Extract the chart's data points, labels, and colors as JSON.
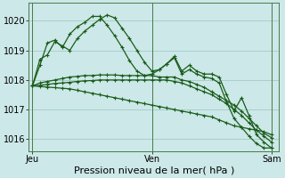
{
  "background_color": "#cce8e8",
  "grid_color": "#aacece",
  "line_color": "#1a5c1a",
  "xlabel": "Pression niveau de la mer( hPa )",
  "xlabel_fontsize": 8,
  "yticks": [
    1016,
    1017,
    1018,
    1019,
    1020
  ],
  "ytick_fontsize": 7,
  "xtick_labels": [
    "Jeu",
    "Ven",
    "Sam"
  ],
  "xtick_positions": [
    0,
    16,
    32
  ],
  "xtick_fontsize": 7,
  "ylim": [
    1015.6,
    1020.6
  ],
  "xlim": [
    -0.5,
    33
  ],
  "n_points": 33,
  "series": [
    [
      1017.8,
      1018.7,
      1018.85,
      1019.3,
      1019.15,
      1019.0,
      1019.4,
      1019.65,
      1019.85,
      1020.05,
      1020.2,
      1020.1,
      1019.75,
      1019.4,
      1019.0,
      1018.6,
      1018.3,
      1018.35,
      1018.55,
      1018.8,
      1018.3,
      1018.5,
      1018.3,
      1018.2,
      1018.2,
      1018.1,
      1017.5,
      1016.95,
      1017.4,
      1016.8,
      1016.15,
      1015.9,
      1015.7
    ],
    [
      1017.8,
      1018.5,
      1019.25,
      1019.35,
      1019.1,
      1019.55,
      1019.8,
      1019.95,
      1020.15,
      1020.15,
      1019.85,
      1019.5,
      1019.1,
      1018.65,
      1018.3,
      1018.15,
      1018.2,
      1018.35,
      1018.55,
      1018.75,
      1018.2,
      1018.35,
      1018.2,
      1018.1,
      1018.05,
      1017.9,
      1017.25,
      1016.7,
      1016.4,
      1016.1,
      1015.85,
      1015.7,
      1015.7
    ],
    [
      1017.8,
      1017.9,
      1017.95,
      1018.0,
      1018.05,
      1018.1,
      1018.12,
      1018.15,
      1018.15,
      1018.17,
      1018.17,
      1018.17,
      1018.15,
      1018.15,
      1018.15,
      1018.15,
      1018.15,
      1018.1,
      1018.1,
      1018.1,
      1018.0,
      1017.95,
      1017.85,
      1017.75,
      1017.6,
      1017.45,
      1017.3,
      1017.15,
      1016.95,
      1016.7,
      1016.45,
      1016.2,
      1016.05
    ],
    [
      1017.8,
      1017.82,
      1017.85,
      1017.88,
      1017.9,
      1017.92,
      1017.95,
      1017.97,
      1017.98,
      1018.0,
      1018.0,
      1018.0,
      1018.0,
      1018.0,
      1018.0,
      1018.0,
      1018.0,
      1018.0,
      1018.0,
      1017.95,
      1017.9,
      1017.8,
      1017.7,
      1017.6,
      1017.5,
      1017.35,
      1017.2,
      1017.0,
      1016.8,
      1016.55,
      1016.3,
      1016.1,
      1015.9
    ],
    [
      1017.8,
      1017.78,
      1017.76,
      1017.74,
      1017.72,
      1017.7,
      1017.65,
      1017.6,
      1017.55,
      1017.5,
      1017.45,
      1017.4,
      1017.35,
      1017.3,
      1017.25,
      1017.2,
      1017.15,
      1017.1,
      1017.05,
      1017.0,
      1016.95,
      1016.9,
      1016.85,
      1016.8,
      1016.75,
      1016.65,
      1016.55,
      1016.45,
      1016.4,
      1016.35,
      1016.3,
      1016.25,
      1016.15
    ]
  ],
  "marker": "+",
  "marker_size": 3.5,
  "linewidth": 0.9
}
